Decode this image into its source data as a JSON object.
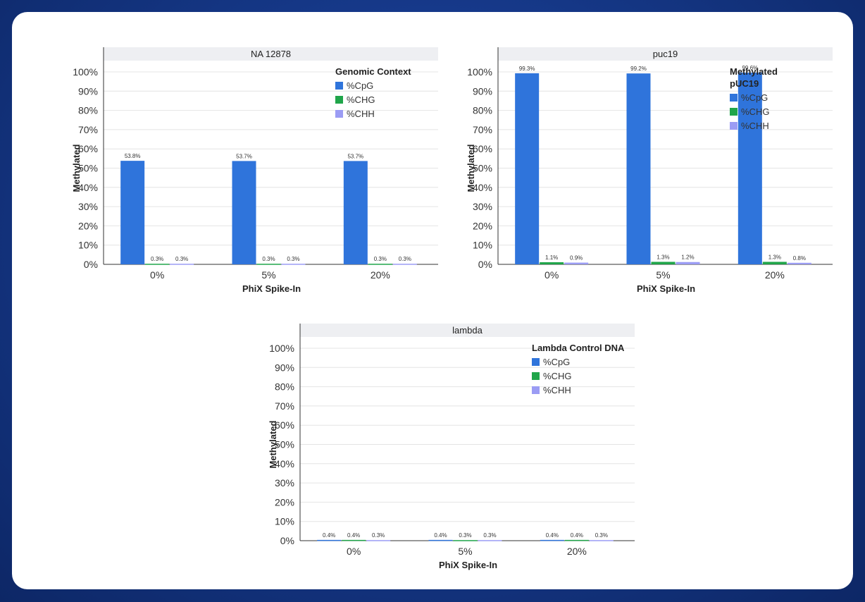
{
  "colors": {
    "cpg": "#2f74db",
    "chg": "#20a54a",
    "chh": "#9b9cf4",
    "strip": "#eeeff2",
    "grid": "#e4e4e4",
    "axis": "#333333"
  },
  "chart_data": [
    {
      "type": "bar",
      "title": "NA 12878",
      "xlabel": "PhiX Spike-In",
      "ylabel": "Methylated",
      "ylim": [
        0,
        100
      ],
      "yticks": [
        "0%",
        "10%",
        "20%",
        "30%",
        "40%",
        "50%",
        "60%",
        "70%",
        "80%",
        "90%",
        "100%"
      ],
      "categories": [
        "0%",
        "5%",
        "20%"
      ],
      "legend_title": [
        "Genomic Context"
      ],
      "legend_position": "top-right",
      "series": [
        {
          "name": "%CpG",
          "color_key": "cpg",
          "values": [
            53.8,
            53.7,
            53.7
          ],
          "labels": [
            "53.8%",
            "53.7%",
            "53.7%"
          ]
        },
        {
          "name": "%CHG",
          "color_key": "chg",
          "values": [
            0.3,
            0.3,
            0.3
          ],
          "labels": [
            "0.3%",
            "0.3%",
            "0.3%"
          ]
        },
        {
          "name": "%CHH",
          "color_key": "chh",
          "values": [
            0.3,
            0.3,
            0.3
          ],
          "labels": [
            "0.3%",
            "0.3%",
            "0.3%"
          ]
        }
      ]
    },
    {
      "type": "bar",
      "title": "puc19",
      "xlabel": "PhiX Spike-In",
      "ylabel": "Methylated",
      "ylim": [
        0,
        100
      ],
      "yticks": [
        "0%",
        "10%",
        "20%",
        "30%",
        "40%",
        "50%",
        "60%",
        "70%",
        "80%",
        "90%",
        "100%"
      ],
      "categories": [
        "0%",
        "5%",
        "20%"
      ],
      "legend_title": [
        "Methylated",
        "pUC19"
      ],
      "legend_position": "top-right",
      "series": [
        {
          "name": "%CpG",
          "color_key": "cpg",
          "values": [
            99.3,
            99.2,
            99.6
          ],
          "labels": [
            "99.3%",
            "99.2%",
            "99.6%"
          ]
        },
        {
          "name": "%CHG",
          "color_key": "chg",
          "values": [
            1.1,
            1.3,
            1.3
          ],
          "labels": [
            "1.1%",
            "1.3%",
            "1.3%"
          ]
        },
        {
          "name": "%CHH",
          "color_key": "chh",
          "values": [
            0.9,
            1.2,
            0.8
          ],
          "labels": [
            "0.9%",
            "1.2%",
            "0.8%"
          ]
        }
      ]
    },
    {
      "type": "bar",
      "title": "lambda",
      "xlabel": "PhiX Spike-In",
      "ylabel": "Methylated",
      "ylim": [
        0,
        100
      ],
      "yticks": [
        "0%",
        "10%",
        "20%",
        "30%",
        "40%",
        "50%",
        "60%",
        "70%",
        "80%",
        "90%",
        "100%"
      ],
      "categories": [
        "0%",
        "5%",
        "20%"
      ],
      "legend_title": [
        "Lambda Control DNA"
      ],
      "legend_position": "top-right",
      "series": [
        {
          "name": "%CpG",
          "color_key": "cpg",
          "values": [
            0.4,
            0.4,
            0.4
          ],
          "labels": [
            "0.4%",
            "0.4%",
            "0.4%"
          ]
        },
        {
          "name": "%CHG",
          "color_key": "chg",
          "values": [
            0.4,
            0.3,
            0.4
          ],
          "labels": [
            "0.4%",
            "0.3%",
            "0.4%"
          ]
        },
        {
          "name": "%CHH",
          "color_key": "chh",
          "values": [
            0.3,
            0.3,
            0.3
          ],
          "labels": [
            "0.3%",
            "0.3%",
            "0.3%"
          ]
        }
      ]
    }
  ]
}
